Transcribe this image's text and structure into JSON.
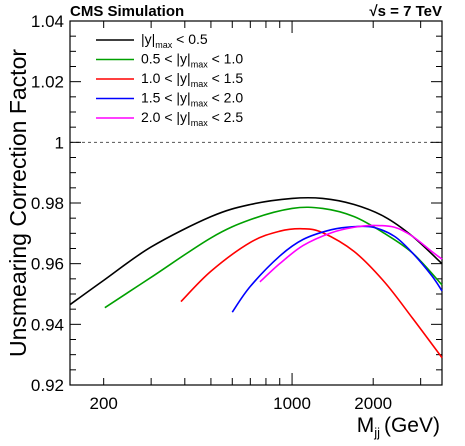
{
  "header": {
    "left": "CMS Simulation",
    "right_prefix": "√",
    "right": "s = 7 TeV"
  },
  "chart_data": {
    "type": "line",
    "xlabel": "M",
    "xlabel_sub": "jj",
    "xlabel_unit": "(GeV)",
    "ylabel": "Unsmearing Correction Factor",
    "xscale": "log",
    "xlim": [
      150,
      3600
    ],
    "ylim": [
      0.92,
      1.04
    ],
    "x_ticks": [
      200,
      1000,
      2000
    ],
    "x_tick_labels": [
      "200",
      "1000",
      "2000"
    ],
    "y_ticks": [
      0.92,
      0.94,
      0.96,
      0.98,
      1.0,
      1.02,
      1.04
    ],
    "y_tick_labels": [
      "0.92",
      "0.94",
      "0.96",
      "0.98",
      "1",
      "1.02",
      "1.04"
    ],
    "reference_line": {
      "y": 1.0,
      "style": "dashed"
    },
    "legend_position": "top-left",
    "series": [
      {
        "name": "|y|max < 0.5",
        "legend": {
          "pre": "|y|",
          "sub": "max",
          "post": " < 0.5"
        },
        "color": "#000000",
        "x": [
          150,
          200,
          300,
          500,
          700,
          1000,
          1300,
          1700,
          2200,
          2800,
          3600
        ],
        "y": [
          0.9465,
          0.9545,
          0.9655,
          0.9755,
          0.9795,
          0.9815,
          0.9815,
          0.9795,
          0.9755,
          0.969,
          0.96
        ]
      },
      {
        "name": "0.5 < |y|max < 1.0",
        "legend": {
          "pre": "0.5 < |y|",
          "sub": "max",
          "post": " < 1.0"
        },
        "color": "#00a000",
        "x": [
          202,
          300,
          500,
          700,
          1000,
          1300,
          1700,
          2200,
          2800,
          3600
        ],
        "y": [
          0.9455,
          0.9555,
          0.9685,
          0.9745,
          0.9782,
          0.9782,
          0.9755,
          0.97,
          0.9635,
          0.953
        ]
      },
      {
        "name": "1.0 < |y|max < 1.5",
        "legend": {
          "pre": "1.0 < |y|",
          "sub": "max",
          "post": " < 1.5"
        },
        "color": "#ff0000",
        "x": [
          387,
          500,
          700,
          900,
          1100,
          1300,
          1700,
          2200,
          2800,
          3600
        ],
        "y": [
          0.9475,
          0.9575,
          0.967,
          0.9707,
          0.9715,
          0.9702,
          0.964,
          0.954,
          0.942,
          0.929
        ]
      },
      {
        "name": "1.5 < |y|max < 2.0",
        "legend": {
          "pre": "1.5 < |y|",
          "sub": "max",
          "post": " < 2.0"
        },
        "color": "#0000ff",
        "x": [
          600,
          700,
          900,
          1100,
          1400,
          1700,
          2000,
          2400,
          2800,
          3300,
          3600
        ],
        "y": [
          0.944,
          0.9525,
          0.9625,
          0.968,
          0.9712,
          0.9722,
          0.972,
          0.969,
          0.9635,
          0.956,
          0.951
        ]
      },
      {
        "name": "2.0 < |y|max < 2.5",
        "legend": {
          "pre": "2.0 < |y|",
          "sub": "max",
          "post": " < 2.5"
        },
        "color": "#ff00ff",
        "x": [
          760,
          900,
          1100,
          1400,
          1700,
          2000,
          2400,
          2800,
          3300,
          3600
        ],
        "y": [
          0.954,
          0.96,
          0.966,
          0.9702,
          0.972,
          0.9726,
          0.972,
          0.969,
          0.964,
          0.9615
        ]
      }
    ]
  }
}
